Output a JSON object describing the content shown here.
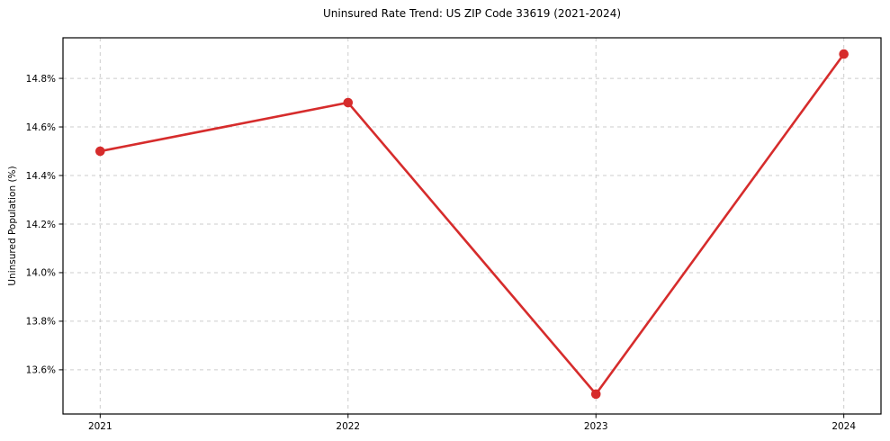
{
  "chart_data": {
    "type": "line",
    "title": "Uninsured Rate Trend: US ZIP Code 33619 (2021-2024)",
    "xlabel": "",
    "ylabel": "Uninsured Population (%)",
    "x": [
      2021,
      2022,
      2023,
      2024
    ],
    "values": [
      14.5,
      14.7,
      13.5,
      14.9
    ],
    "x_tick_labels": [
      "2021",
      "2022",
      "2023",
      "2024"
    ],
    "y_ticks": [
      13.6,
      13.8,
      14.0,
      14.2,
      14.4,
      14.6,
      14.8
    ],
    "y_tick_labels": [
      "13.6%",
      "13.8%",
      "14.0%",
      "14.2%",
      "14.4%",
      "14.6%",
      "14.8%"
    ],
    "xlim": [
      2020.85,
      2024.15
    ],
    "ylim": [
      13.418,
      14.967
    ],
    "grid": true,
    "grid_style": "dashed",
    "legend_position": "none",
    "colors": {
      "line": "#d62c2c",
      "marker": "#d62c2c",
      "grid": "#cccccc",
      "axis": "#000000",
      "background": "#ffffff"
    }
  }
}
